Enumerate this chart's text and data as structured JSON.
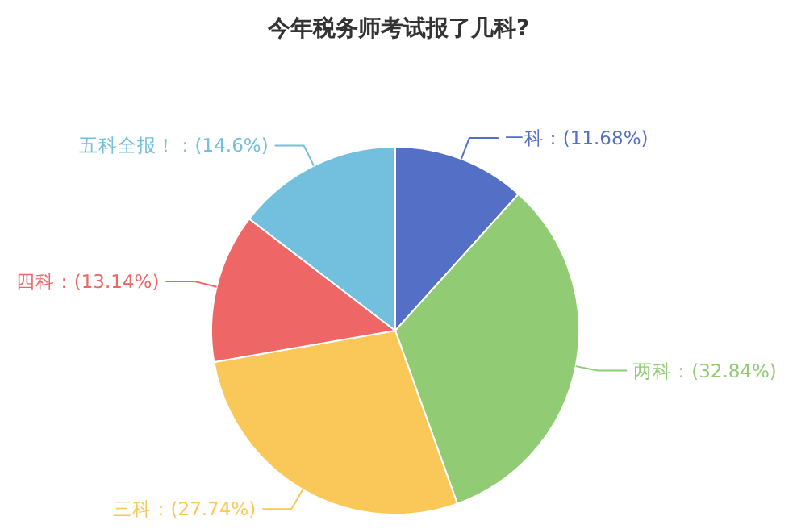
{
  "chart_data": {
    "type": "pie",
    "title": "今年税务师考试报了几科?",
    "categories": [
      "一科",
      "两科",
      "三科",
      "四科",
      "五科全报！"
    ],
    "values": [
      11.68,
      32.84,
      27.74,
      13.14,
      14.6
    ],
    "colors": [
      "#5470c6",
      "#91cc75",
      "#fac858",
      "#ee6666",
      "#73c0de"
    ],
    "value_labels": [
      "：(11.68%)",
      "：(32.84%)",
      "：(27.74%)",
      "：(13.14%)",
      "：(14.6%)"
    ]
  }
}
